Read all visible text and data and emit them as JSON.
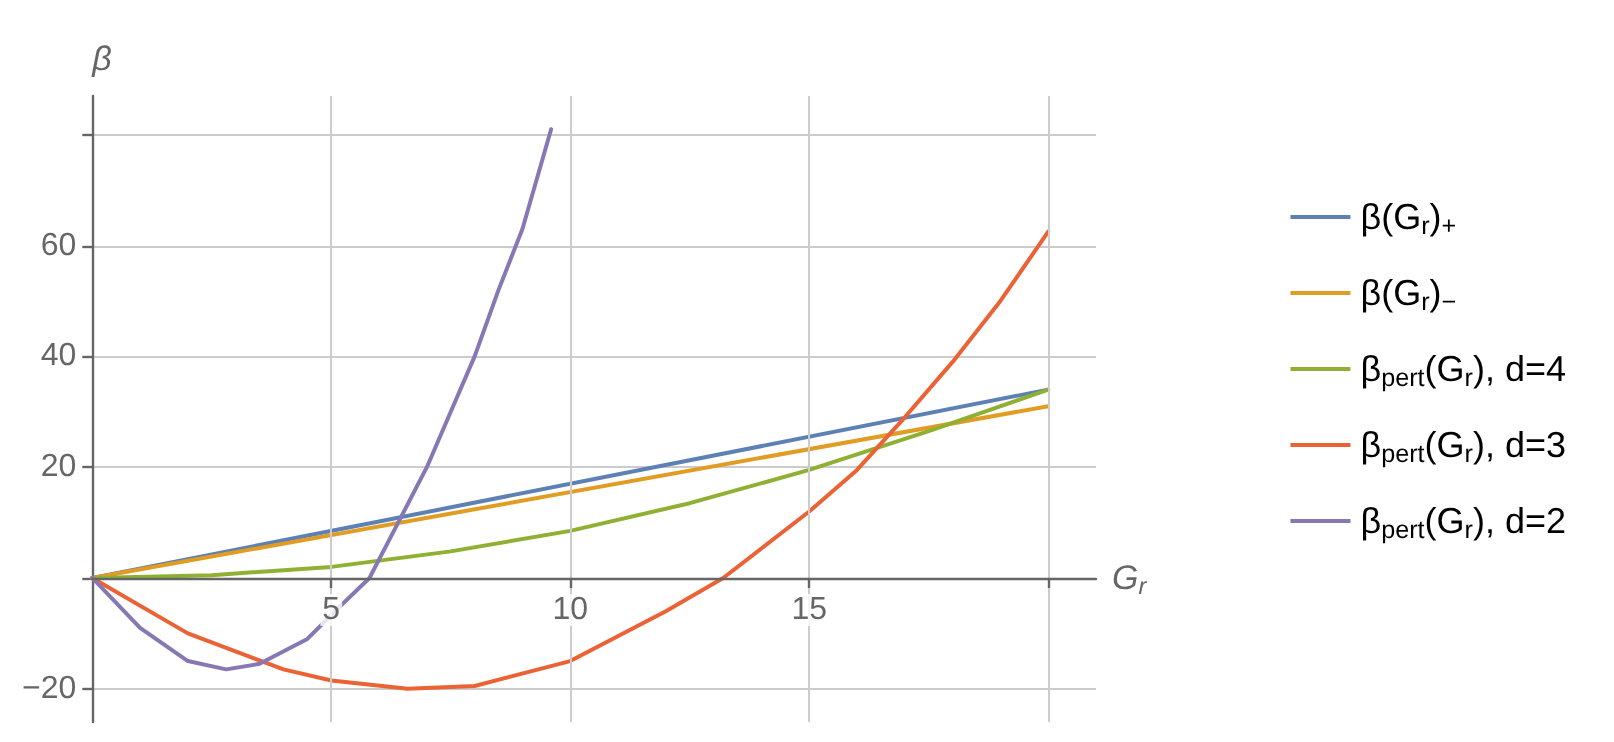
{
  "chart_data": {
    "type": "line",
    "xlabel": "G$_{r}$",
    "ylabel": "β",
    "xlim": [
      0,
      21
    ],
    "ylim": [
      -26,
      87
    ],
    "xticks": [
      5,
      10,
      15,
      {
        "value": 20,
        "label": null
      }
    ],
    "yticks": [
      {
        "value": -20,
        "label": "−20"
      },
      {
        "value": 0,
        "label": null
      },
      20,
      40,
      60,
      {
        "value": 80,
        "label": null
      }
    ],
    "grid": true,
    "legend": "right",
    "marker": "none",
    "line_style": "solid",
    "series": [
      {
        "name": "β(G$_{r}$)$_{+}$",
        "color": "#5e81b5",
        "x": [
          0,
          20
        ],
        "values": [
          0,
          34
        ]
      },
      {
        "name": "β(G$_{r}$)$_{−}$",
        "color": "#e19c24",
        "x": [
          0,
          20
        ],
        "values": [
          0,
          31
        ]
      },
      {
        "name": "β$_{pert}$(G$_{r}$), d=4",
        "color": "#8fb032",
        "x": [
          0,
          2.5,
          5,
          7.5,
          10,
          12.5,
          15,
          17.5,
          20
        ],
        "values": [
          0,
          0.5,
          2,
          4.8,
          8.5,
          13.5,
          19.5,
          26.5,
          34
        ]
      },
      {
        "name": "β$_{pert}$(G$_{r}$), d=3",
        "color": "#eb6235",
        "x": [
          0,
          2,
          4,
          5,
          6.6,
          8,
          10,
          12,
          13.2,
          15,
          16,
          17,
          18,
          19,
          20
        ],
        "values": [
          0,
          -10,
          -16.5,
          -18.5,
          -20,
          -19.5,
          -15,
          -6,
          0,
          12,
          19.5,
          29,
          39,
          50,
          62.5
        ]
      },
      {
        "name": "β$_{pert}$(G$_{r}$), d=2",
        "color": "#8778b3",
        "x": [
          0,
          1,
          2,
          2.8,
          3.5,
          4.5,
          5.2,
          5.8,
          6.4,
          7,
          7.5,
          8,
          8.5,
          9,
          9.6
        ],
        "values": [
          0,
          -9,
          -15,
          -16.5,
          -15.5,
          -11,
          -5,
          0,
          10,
          20,
          30,
          40,
          52,
          63,
          81
        ]
      }
    ]
  }
}
